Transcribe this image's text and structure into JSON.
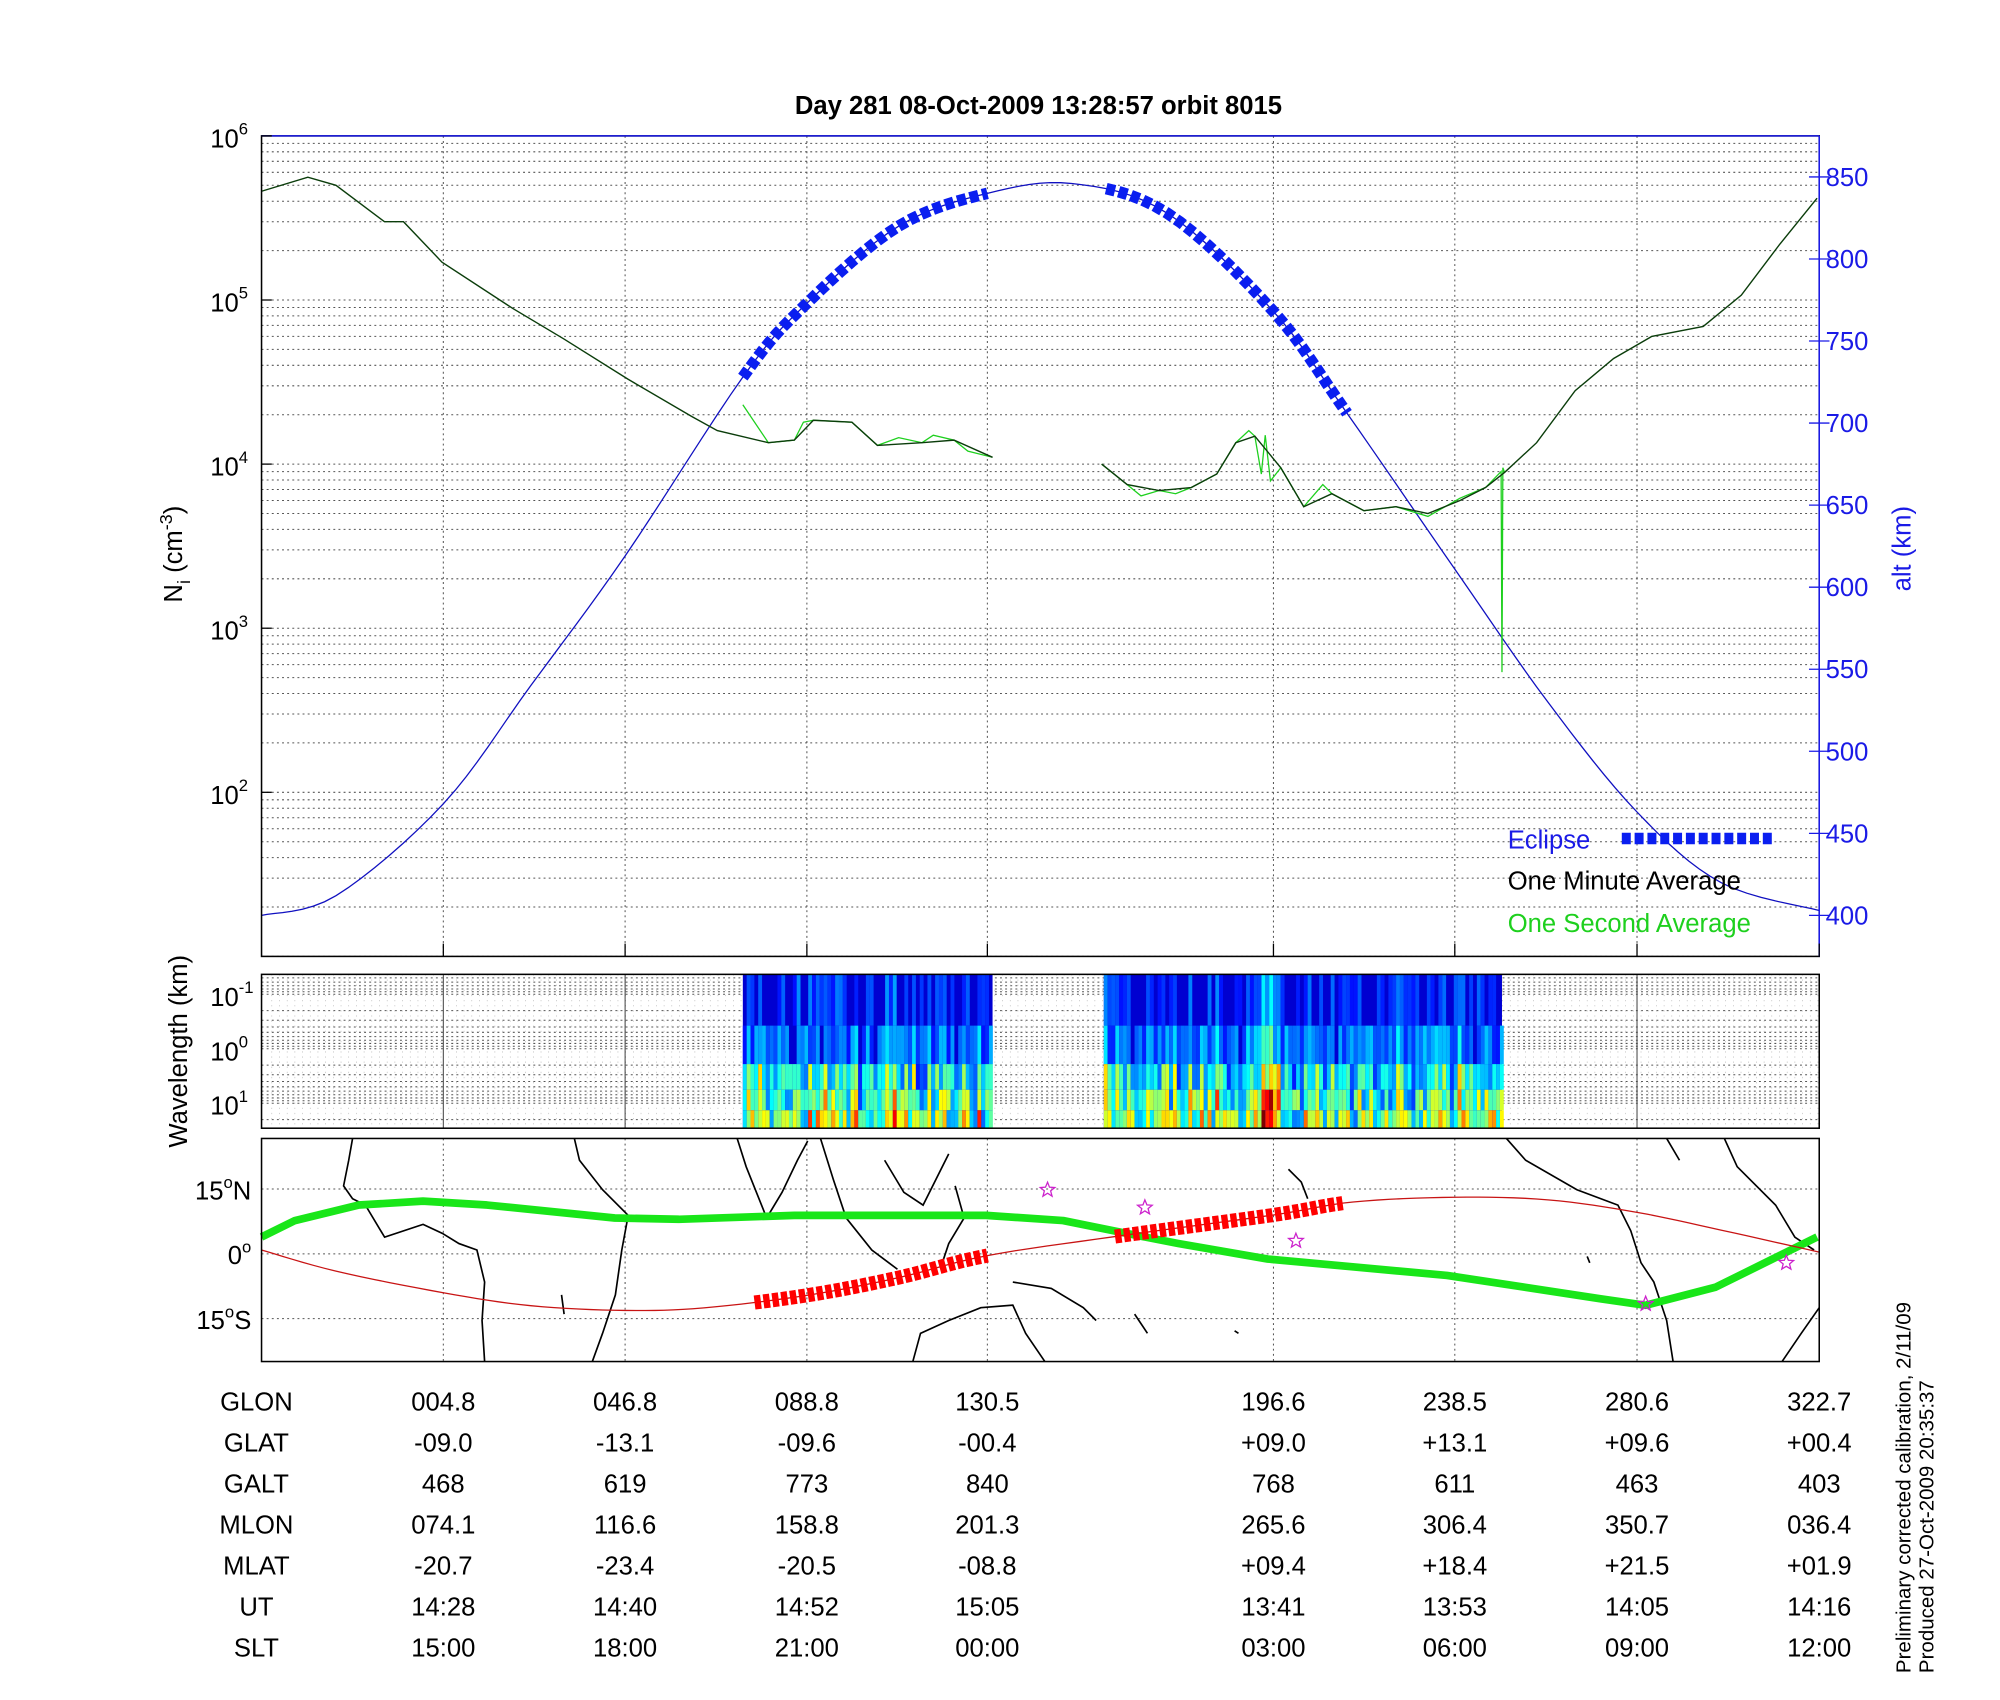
{
  "chart_data": [
    {
      "type": "line",
      "title": "Day 281  08-Oct-2009 13:28:57   orbit 8015",
      "ylabel_main": "N",
      "ylabel_sub": "i",
      "ylabel_unit": "(cm",
      "ylabel_exp": "-3",
      "ylabel_close": ")",
      "y2label": "alt (km)",
      "yscale": "log",
      "xlim_glon": [
        -37.2,
        322.7
      ],
      "ylim": [
        10,
        1000000
      ],
      "y2lim": [
        375,
        875
      ],
      "yticks": [
        {
          "base": "10",
          "exp": "6",
          "value": 1000000
        },
        {
          "base": "10",
          "exp": "5",
          "value": 100000
        },
        {
          "base": "10",
          "exp": "4",
          "value": 10000
        },
        {
          "base": "10",
          "exp": "3",
          "value": 1000
        },
        {
          "base": "10",
          "exp": "2",
          "value": 100
        }
      ],
      "y2ticks": [
        "850",
        "800",
        "750",
        "700",
        "650",
        "600",
        "550",
        "500",
        "450",
        "400"
      ],
      "grid": true,
      "legend_position": "bottom-right",
      "legend": {
        "eclipse": "Eclipse",
        "minute": "One Minute Average",
        "second": "One Second Average"
      },
      "colors": {
        "alt": "#1010c0",
        "eclipse": "#0a1ef0",
        "minute": "#0b3d0b",
        "second": "#1ed01e",
        "axis2": "#1a1ae6"
      },
      "series": [
        {
          "name": "One Minute Average",
          "segments": [
            {
              "x": [
                -37.2,
                -26.5,
                -20.0,
                -8.8,
                -4.4,
                4.5,
                20.8,
                32.6,
                47.4,
                62.2,
                68.1,
                79.9,
                85.9,
                90.3,
                99.2,
                105.1,
                115.4,
                122.8,
                131.7
              ],
              "y": [
                460000,
                560000,
                500000,
                300000,
                300000,
                170000,
                89000,
                58000,
                33000,
                19500,
                16000,
                13500,
                14000,
                18500,
                18000,
                13000,
                13500,
                14000,
                11000
              ]
            },
            {
              "x": [
                156.9,
                162.8,
                170.2,
                177.6,
                183.5,
                187.9,
                192.3,
                198.3,
                203.6,
                210.1,
                217.5,
                224.9,
                232.3,
                239.7,
                245.6,
                250.0,
                257.4,
                266.3,
                275.2,
                284.0,
                295.9,
                304.7,
                313.6,
                322.2
              ],
              "y": [
                10000,
                7500,
                6900,
                7200,
                8700,
                13500,
                14800,
                9500,
                5500,
                6600,
                5200,
                5500,
                5000,
                6000,
                7200,
                8900,
                13500,
                28000,
                44000,
                60000,
                69000,
                107000,
                219000,
                417000
              ]
            }
          ]
        },
        {
          "name": "One Second Average",
          "segments": [
            {
              "x": [
                74.0,
                79.9,
                85.9,
                88.0,
                90.3,
                99.2,
                105.1,
                110.0,
                115.4,
                118.0,
                122.8,
                126.0,
                131.7
              ],
              "y": [
                23000,
                13500,
                14000,
                18000,
                18500,
                18000,
                13000,
                14500,
                13500,
                15000,
                14000,
                12000,
                11000
              ]
            },
            {
              "x": [
                156.9,
                162.8,
                166.0,
                170.2,
                174.0,
                177.6,
                183.5,
                187.9,
                190.9,
                192.3,
                193.8,
                194.7,
                195.9,
                198.3,
                203.6,
                208.0,
                210.1,
                217.5,
                224.9,
                232.3,
                239.7,
                245.6,
                249.2,
                249.4,
                249.6,
                250.0
              ],
              "y": [
                10000,
                7500,
                6400,
                6900,
                6600,
                7200,
                8700,
                13500,
                16000,
                14800,
                8700,
                15000,
                7900,
                9500,
                5500,
                7500,
                6600,
                5200,
                5500,
                4800,
                6200,
                7200,
                9000,
                540,
                9500,
                8900
              ]
            }
          ]
        }
      ],
      "altitude_km": {
        "x": [
          -37.2,
          -20,
          4.8,
          25,
          46.8,
          74,
          88.8,
          110,
          130.5,
          150,
          172,
          196.6,
          213.6,
          238.5,
          260,
          280.6,
          300,
          322.7
        ],
        "y": [
          400,
          412,
          468,
          540,
          619,
          728,
          773,
          820,
          840,
          846,
          828,
          768,
          706,
          611,
          530,
          463,
          420,
          403
        ]
      },
      "eclipse_glon": [
        [
          74.0,
          131.7
        ],
        [
          157.4,
          213.6
        ]
      ]
    },
    {
      "type": "heatmap",
      "ylabel": "Wavelength (km)",
      "yscale": "log",
      "ylim_km": [
        0.045,
        29
      ],
      "yticks": [
        {
          "base": "10",
          "exp": "-1"
        },
        {
          "base": "10",
          "exp": "0"
        },
        {
          "base": "10",
          "exp": "1"
        }
      ],
      "colormap": "jet",
      "data_glon": [
        [
          74.0,
          131.7
        ],
        [
          157.4,
          249.4
        ]
      ]
    },
    {
      "type": "map",
      "ylim_lat": [
        -25,
        26
      ],
      "yticks": [
        {
          "label": "15",
          "deg": "o",
          "hemi": "N"
        },
        {
          "label": "0",
          "deg": "o",
          "hemi": ""
        },
        {
          "label": "15",
          "deg": "o",
          "hemi": "S"
        }
      ],
      "colors": {
        "track": "#c81414",
        "eclipse_track": "#ff0000",
        "dip_equator": "#19e619",
        "stars": "#cc22cc"
      },
      "green_line": {
        "glon": [
          -37.2,
          -29.5,
          -14.7,
          0.1,
          14.9,
          44.4,
          59.2,
          85.9,
          103.6,
          130.2,
          148.0,
          162.8,
          174.6,
          195.3,
          236.7,
          272.2,
          282.6,
          298.8,
          322.2
        ],
        "lat": [
          3.9,
          7.7,
          11.3,
          12.2,
          11.3,
          8.3,
          8.0,
          8.9,
          8.9,
          8.9,
          7.7,
          4.7,
          2.4,
          -1.2,
          -5.0,
          -10.4,
          -11.9,
          -7.7,
          3.9
        ]
      },
      "ground_track": {
        "glon": [
          -37.2,
          -20,
          4.8,
          25,
          46.8,
          65,
          88.8,
          110,
          130.5,
          160,
          196.6,
          215,
          238.5,
          260,
          280.6,
          300,
          322.7
        ],
        "lat": [
          0.9,
          -4,
          -9.0,
          -12,
          -13.1,
          -12.5,
          -9.6,
          -5.5,
          -0.4,
          4,
          9.0,
          12,
          13.1,
          12.5,
          9.6,
          5.5,
          0.4
        ]
      },
      "stars": [
        {
          "glon": 144.4,
          "lat": 14.8
        },
        {
          "glon": 166.9,
          "lat": 10.7
        },
        {
          "glon": 201.8,
          "lat": 3.0
        },
        {
          "glon": 282.6,
          "lat": -11.6
        },
        {
          "glon": 315.1,
          "lat": -2.1
        }
      ]
    }
  ],
  "table": {
    "columns_glon": [
      4.8,
      46.8,
      88.8,
      130.5,
      196.6,
      238.5,
      280.6,
      322.7
    ],
    "rows": [
      {
        "label": "GLON",
        "values": [
          "004.8",
          "046.8",
          "088.8",
          "130.5",
          "196.6",
          "238.5",
          "280.6",
          "322.7"
        ]
      },
      {
        "label": "GLAT",
        "values": [
          "-09.0",
          "-13.1",
          "-09.6",
          "-00.4",
          "+09.0",
          "+13.1",
          "+09.6",
          "+00.4"
        ]
      },
      {
        "label": "GALT",
        "values": [
          "468",
          "619",
          "773",
          "840",
          "768",
          "611",
          "463",
          "403"
        ]
      },
      {
        "label": "MLON",
        "values": [
          "074.1",
          "116.6",
          "158.8",
          "201.3",
          "265.6",
          "306.4",
          "350.7",
          "036.4"
        ]
      },
      {
        "label": "MLAT",
        "values": [
          "-20.7",
          "-23.4",
          "-20.5",
          "-08.8",
          "+09.4",
          "+18.4",
          "+21.5",
          "+01.9"
        ]
      },
      {
        "label": "UT",
        "values": [
          "14:28",
          "14:40",
          "14:52",
          "15:05",
          "13:41",
          "13:53",
          "14:05",
          "14:16"
        ]
      },
      {
        "label": "SLT",
        "values": [
          "15:00",
          "18:00",
          "21:00",
          "00:00",
          "03:00",
          "06:00",
          "09:00",
          "12:00"
        ]
      }
    ]
  },
  "footer": {
    "calibration": "Preliminary corrected calibration, 2/11/09",
    "produced": "Produced 27-Oct-2009 20:35:37"
  }
}
